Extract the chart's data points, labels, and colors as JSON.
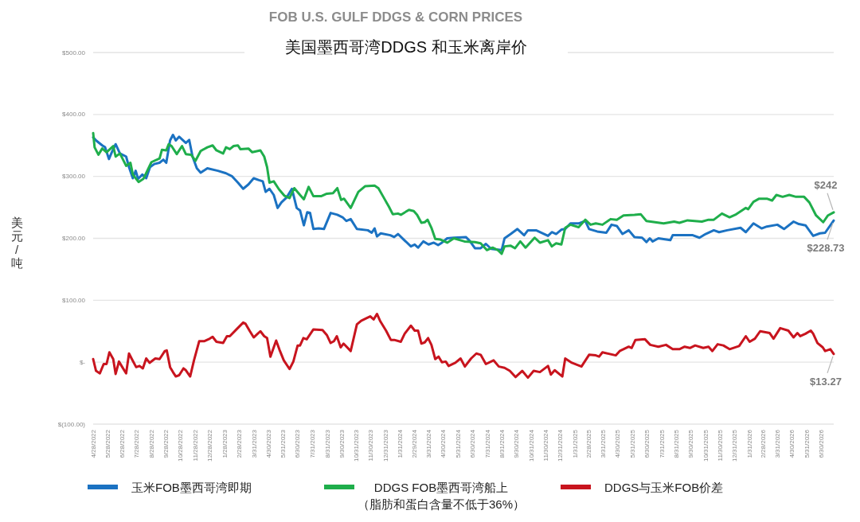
{
  "chart_data": {
    "type": "line",
    "title": "FOB U.S. GULF DDGS & CORN PRICES",
    "subtitle": "美国墨西哥湾DDGS 和玉米离岸价",
    "ylabel": "美元/吨",
    "xlim": [
      "2022-04-28",
      "2026-07-26"
    ],
    "ylim": [
      -100,
      500
    ],
    "yticks": [
      {
        "value": 500,
        "label": "$500.00"
      },
      {
        "value": 400,
        "label": "$400.00"
      },
      {
        "value": 300,
        "label": "$300.00"
      },
      {
        "value": 200,
        "label": "$200.00"
      },
      {
        "value": 100,
        "label": "$100.00"
      },
      {
        "value": 0,
        "label": "$-"
      },
      {
        "value": -100,
        "label": "$(100.00)"
      }
    ],
    "xticks": [
      {
        "value": "2022-04-28",
        "label": "4/28/2022"
      },
      {
        "value": "2022-05-28",
        "label": "5/28/2022"
      },
      {
        "value": "2022-06-28",
        "label": "6/28/2022"
      },
      {
        "value": "2022-07-28",
        "label": "7/28/2022"
      },
      {
        "value": "2022-08-28",
        "label": "8/28/2022"
      },
      {
        "value": "2022-09-28",
        "label": "9/28/2022"
      },
      {
        "value": "2022-10-28",
        "label": "10/28/2022"
      },
      {
        "value": "2022-11-28",
        "label": "11/28/2022"
      },
      {
        "value": "2022-12-28",
        "label": "12/28/2022"
      },
      {
        "value": "2023-01-28",
        "label": "1/28/2023"
      },
      {
        "value": "2023-02-28",
        "label": "2/28/2023"
      },
      {
        "value": "2023-03-31",
        "label": "3/31/2023"
      },
      {
        "value": "2023-04-30",
        "label": "4/30/2023"
      },
      {
        "value": "2023-05-31",
        "label": "5/31/2023"
      },
      {
        "value": "2023-06-30",
        "label": "6/30/2023"
      },
      {
        "value": "2023-07-31",
        "label": "7/31/2023"
      },
      {
        "value": "2023-08-31",
        "label": "8/31/2023"
      },
      {
        "value": "2023-09-30",
        "label": "9/30/2023"
      },
      {
        "value": "2023-10-31",
        "label": "10/31/2023"
      },
      {
        "value": "2023-11-30",
        "label": "11/30/2023"
      },
      {
        "value": "2023-12-31",
        "label": "12/31/2023"
      },
      {
        "value": "2024-01-31",
        "label": "1/31/2024"
      },
      {
        "value": "2024-02-29",
        "label": "2/29/2024"
      },
      {
        "value": "2024-03-31",
        "label": "3/31/2024"
      },
      {
        "value": "2024-04-30",
        "label": "4/30/2024"
      },
      {
        "value": "2024-05-31",
        "label": "5/31/2024"
      },
      {
        "value": "2024-06-30",
        "label": "6/30/2024"
      },
      {
        "value": "2024-07-31",
        "label": "7/31/2024"
      },
      {
        "value": "2024-08-31",
        "label": "8/31/2024"
      },
      {
        "value": "2024-09-30",
        "label": "9/30/2024"
      },
      {
        "value": "2024-10-31",
        "label": "10/31/2024"
      },
      {
        "value": "2024-11-30",
        "label": "11/30/2024"
      },
      {
        "value": "2024-12-31",
        "label": "12/31/2024"
      },
      {
        "value": "2025-01-31",
        "label": "1/31/2025"
      },
      {
        "value": "2025-02-28",
        "label": "2/28/2025"
      },
      {
        "value": "2025-03-31",
        "label": "3/31/2025"
      },
      {
        "value": "2025-04-30",
        "label": "4/30/2025"
      },
      {
        "value": "2025-05-31",
        "label": "5/31/2025"
      },
      {
        "value": "2025-06-30",
        "label": "6/30/2025"
      },
      {
        "value": "2025-07-31",
        "label": "7/31/2025"
      },
      {
        "value": "2025-08-31",
        "label": "8/31/2025"
      },
      {
        "value": "2025-09-30",
        "label": "9/30/2025"
      },
      {
        "value": "2025-10-31",
        "label": "10/31/2025"
      },
      {
        "value": "2025-11-30",
        "label": "11/30/2025"
      },
      {
        "value": "2025-12-31",
        "label": "12/31/2025"
      },
      {
        "value": "2026-01-31",
        "label": "1/31/2026"
      },
      {
        "value": "2026-02-28",
        "label": "2/28/2026"
      },
      {
        "value": "2026-03-31",
        "label": "3/31/2026"
      },
      {
        "value": "2026-04-30",
        "label": "4/30/2026"
      },
      {
        "value": "2026-05-31",
        "label": "5/31/2026"
      },
      {
        "value": "2026-06-30",
        "label": "6/30/2026"
      }
    ],
    "series": [
      {
        "name": "玉米FOB墨西哥湾即期",
        "color": "#1b72c2",
        "x": [
          "2022-04-28",
          "2022-05-04",
          "2022-05-17",
          "2022-05-23",
          "2022-05-31",
          "2022-06-06",
          "2022-06-14",
          "2022-06-23",
          "2022-07-06",
          "2022-07-12",
          "2022-07-20",
          "2022-07-26",
          "2022-07-31",
          "2022-08-09",
          "2022-08-17",
          "2022-08-25",
          "2022-09-03",
          "2022-09-14",
          "2022-09-22",
          "2022-09-28",
          "2022-10-06",
          "2022-10-12",
          "2022-10-18",
          "2022-10-25",
          "2022-11-08",
          "2022-11-15",
          "2022-11-22",
          "2022-12-01",
          "2022-12-09",
          "2022-12-23",
          "2023-01-14",
          "2023-01-31",
          "2023-02-13",
          "2023-02-25",
          "2023-03-08",
          "2023-03-19",
          "2023-03-30",
          "2023-04-10",
          "2023-04-18",
          "2023-04-24",
          "2023-05-02",
          "2023-05-11",
          "2023-05-19",
          "2023-05-27",
          "2023-06-07",
          "2023-06-18",
          "2023-06-28",
          "2023-07-05",
          "2023-07-13",
          "2023-07-20",
          "2023-07-26",
          "2023-08-02",
          "2023-08-13",
          "2023-08-24",
          "2023-09-07",
          "2023-09-21",
          "2023-10-02",
          "2023-10-10",
          "2023-10-19",
          "2023-11-01",
          "2023-11-24",
          "2023-12-02",
          "2023-12-08",
          "2023-12-13",
          "2023-12-21",
          "2024-01-10",
          "2024-01-18",
          "2024-01-26",
          "2024-02-07",
          "2024-02-22",
          "2024-03-01",
          "2024-03-08",
          "2024-03-19",
          "2024-03-30",
          "2024-04-10",
          "2024-04-19",
          "2024-04-27",
          "2024-05-08",
          "2024-05-22",
          "2024-06-16",
          "2024-06-24",
          "2024-07-05",
          "2024-07-17",
          "2024-07-28",
          "2024-08-08",
          "2024-08-30",
          "2024-09-05",
          "2024-09-18",
          "2024-10-02",
          "2024-10-16",
          "2024-10-24",
          "2024-11-10",
          "2024-12-05",
          "2024-12-13",
          "2024-12-22",
          "2025-01-02",
          "2025-01-10",
          "2025-01-21",
          "2025-02-07",
          "2025-02-21",
          "2025-03-01",
          "2025-03-18",
          "2025-04-06",
          "2025-04-17",
          "2025-04-28",
          "2025-05-10",
          "2025-05-23",
          "2025-06-04",
          "2025-06-20",
          "2025-06-29",
          "2025-07-06",
          "2025-07-12",
          "2025-07-24",
          "2025-08-18",
          "2025-08-23",
          "2025-10-04",
          "2025-10-18",
          "2025-10-31",
          "2025-11-17",
          "2025-11-28",
          "2025-12-15",
          "2026-01-12",
          "2026-01-23",
          "2026-02-08",
          "2026-02-25",
          "2026-03-08",
          "2026-03-30",
          "2026-04-13",
          "2026-05-03",
          "2026-05-14",
          "2026-05-28",
          "2026-06-13",
          "2026-06-27",
          "2026-07-08",
          "2026-07-26"
        ],
        "values": [
          363,
          358,
          350,
          347,
          328,
          339,
          352,
          337,
          332,
          315,
          297,
          309,
          296,
          303,
          297,
          315,
          320,
          322,
          327,
          322,
          358,
          367,
          358,
          364,
          354,
          359,
          332,
          313,
          306,
          313,
          309,
          305,
          300,
          290,
          280,
          287,
          297,
          294,
          292,
          275,
          280,
          270,
          249,
          258,
          266,
          280,
          249,
          245,
          221,
          242,
          241,
          215,
          216,
          215,
          241,
          238,
          234,
          228,
          231,
          215,
          213,
          209,
          216,
          203,
          208,
          205,
          202,
          207,
          198,
          187,
          190,
          185,
          195,
          190,
          193,
          189,
          193,
          200,
          201,
          202,
          196,
          184,
          184,
          191,
          183,
          181,
          200,
          207,
          215,
          205,
          213,
          213,
          204,
          210,
          207,
          214,
          215,
          224,
          224,
          228,
          215,
          211,
          209,
          222,
          220,
          207,
          213,
          202,
          201,
          194,
          200,
          195,
          200,
          197,
          205,
          205,
          201,
          207,
          213,
          210,
          213,
          217,
          210,
          224,
          216,
          219,
          222,
          215,
          227,
          223,
          221,
          204,
          208,
          209,
          228.73
        ]
      },
      {
        "name": "DDGS FOB墨西哥湾船上（脂肪和蛋白含量不低于36%）",
        "color": "#1fae4b",
        "x": [
          "2022-04-28",
          "2022-05-01",
          "2022-05-09",
          "2022-05-17",
          "2022-05-26",
          "2022-06-09",
          "2022-06-14",
          "2022-06-23",
          "2022-07-06",
          "2022-07-15",
          "2022-07-20",
          "2022-08-01",
          "2022-08-11",
          "2022-08-28",
          "2022-09-14",
          "2022-09-19",
          "2022-09-28",
          "2022-10-03",
          "2022-10-09",
          "2022-10-20",
          "2022-10-31",
          "2022-11-08",
          "2022-11-19",
          "2022-11-28",
          "2022-12-09",
          "2022-12-23",
          "2023-01-03",
          "2023-01-11",
          "2023-01-25",
          "2023-01-31",
          "2023-02-08",
          "2023-02-16",
          "2023-02-25",
          "2023-03-02",
          "2023-03-19",
          "2023-03-27",
          "2023-04-13",
          "2023-04-21",
          "2023-04-27",
          "2023-05-02",
          "2023-05-11",
          "2023-05-22",
          "2023-06-02",
          "2023-06-13",
          "2023-06-23",
          "2023-07-05",
          "2023-07-13",
          "2023-07-23",
          "2023-08-02",
          "2023-08-18",
          "2023-08-30",
          "2023-09-12",
          "2023-09-21",
          "2023-09-29",
          "2023-10-05",
          "2023-10-19",
          "2023-11-04",
          "2023-11-18",
          "2023-12-08",
          "2023-12-16",
          "2023-12-27",
          "2024-01-07",
          "2024-01-15",
          "2024-01-26",
          "2024-02-01",
          "2024-02-18",
          "2024-02-28",
          "2024-03-06",
          "2024-03-15",
          "2024-03-22",
          "2024-03-28",
          "2024-04-05",
          "2024-04-13",
          "2024-04-24",
          "2024-05-08",
          "2024-05-22",
          "2024-06-13",
          "2024-07-05",
          "2024-07-17",
          "2024-07-30",
          "2024-08-11",
          "2024-08-22",
          "2024-08-30",
          "2024-09-05",
          "2024-09-18",
          "2024-09-27",
          "2024-10-08",
          "2024-10-19",
          "2024-11-07",
          "2024-11-18",
          "2024-12-05",
          "2024-12-13",
          "2024-12-22",
          "2025-01-02",
          "2025-01-10",
          "2025-01-21",
          "2025-02-07",
          "2025-02-21",
          "2025-03-04",
          "2025-03-15",
          "2025-03-29",
          "2025-04-15",
          "2025-04-28",
          "2025-05-12",
          "2025-06-04",
          "2025-06-17",
          "2025-06-29",
          "2025-08-04",
          "2025-08-26",
          "2025-09-06",
          "2025-09-23",
          "2025-10-23",
          "2025-11-06",
          "2025-11-17",
          "2025-12-04",
          "2025-12-20",
          "2026-01-01",
          "2026-01-23",
          "2026-01-28",
          "2026-02-08",
          "2026-02-20",
          "2026-03-08",
          "2026-03-19",
          "2026-03-28",
          "2026-04-10",
          "2026-04-24",
          "2026-05-08",
          "2026-05-25",
          "2026-06-05",
          "2026-06-19",
          "2026-07-04",
          "2026-07-14",
          "2026-07-26"
        ],
        "values": [
          370,
          347,
          335,
          345,
          339,
          349,
          332,
          337,
          317,
          322,
          303,
          291,
          296,
          323,
          329,
          343,
          342,
          352,
          349,
          336,
          349,
          336,
          335,
          325,
          341,
          347,
          350,
          342,
          337,
          347,
          344,
          349,
          350,
          344,
          345,
          339,
          342,
          332,
          315,
          290,
          292,
          279,
          269,
          265,
          281,
          270,
          263,
          283,
          268,
          268,
          272,
          273,
          281,
          262,
          264,
          249,
          275,
          284,
          285,
          281,
          266,
          251,
          239,
          240,
          238,
          246,
          244,
          238,
          225,
          226,
          230,
          217,
          199,
          198,
          193,
          200,
          195,
          194,
          192,
          181,
          185,
          181,
          175,
          187,
          188,
          184,
          195,
          185,
          201,
          193,
          197,
          187,
          192,
          190,
          217,
          222,
          218,
          230,
          222,
          224,
          222,
          231,
          230,
          237,
          238,
          239,
          228,
          224,
          227,
          225,
          229,
          227,
          230,
          230,
          240,
          234,
          238,
          249,
          247,
          259,
          264,
          264,
          261,
          270,
          267,
          270,
          267,
          267,
          258,
          237,
          226,
          237,
          242
        ]
      },
      {
        "name": "DDGS与玉米FOB价差",
        "color": "#c8141e",
        "x": [
          "2022-04-28",
          "2022-05-04",
          "2022-05-12",
          "2022-05-20",
          "2022-05-26",
          "2022-06-01",
          "2022-06-09",
          "2022-06-14",
          "2022-06-21",
          "2022-06-28",
          "2022-07-06",
          "2022-07-12",
          "2022-07-18",
          "2022-07-27",
          "2022-08-03",
          "2022-08-10",
          "2022-08-17",
          "2022-08-24",
          "2022-09-05",
          "2022-09-14",
          "2022-09-25",
          "2022-09-29",
          "2022-10-06",
          "2022-10-12",
          "2022-10-18",
          "2022-10-25",
          "2022-11-03",
          "2022-11-08",
          "2022-11-17",
          "2022-11-25",
          "2022-12-06",
          "2022-12-17",
          "2022-12-28",
          "2023-01-03",
          "2023-01-11",
          "2023-01-25",
          "2023-02-02",
          "2023-02-08",
          "2023-02-22",
          "2023-03-08",
          "2023-03-13",
          "2023-03-22",
          "2023-03-30",
          "2023-04-06",
          "2023-04-13",
          "2023-04-21",
          "2023-04-27",
          "2023-05-04",
          "2023-05-16",
          "2023-05-23",
          "2023-06-01",
          "2023-06-13",
          "2023-06-21",
          "2023-06-30",
          "2023-07-05",
          "2023-07-12",
          "2023-07-19",
          "2023-08-02",
          "2023-08-21",
          "2023-08-30",
          "2023-09-07",
          "2023-09-14",
          "2023-09-20",
          "2023-09-28",
          "2023-10-04",
          "2023-10-19",
          "2023-11-01",
          "2023-11-10",
          "2023-11-21",
          "2023-11-29",
          "2023-12-06",
          "2023-12-13",
          "2023-12-20",
          "2024-01-01",
          "2024-01-11",
          "2024-01-18",
          "2024-02-01",
          "2024-02-09",
          "2024-02-22",
          "2024-03-01",
          "2024-03-08",
          "2024-03-15",
          "2024-03-22",
          "2024-03-29",
          "2024-04-05",
          "2024-04-13",
          "2024-04-20",
          "2024-04-27",
          "2024-05-05",
          "2024-05-11",
          "2024-05-25",
          "2024-06-05",
          "2024-06-14",
          "2024-06-27",
          "2024-07-08",
          "2024-07-17",
          "2024-07-28",
          "2024-08-13",
          "2024-08-24",
          "2024-09-05",
          "2024-09-16",
          "2024-09-28",
          "2024-10-12",
          "2024-10-24",
          "2024-11-05",
          "2024-11-18",
          "2024-12-05",
          "2024-12-11",
          "2024-12-19",
          "2025-01-04",
          "2025-01-10",
          "2025-01-24",
          "2025-02-13",
          "2025-03-01",
          "2025-03-15",
          "2025-03-22",
          "2025-03-29",
          "2025-04-26",
          "2025-05-04",
          "2025-05-23",
          "2025-05-29",
          "2025-06-06",
          "2025-06-26",
          "2025-07-07",
          "2025-07-24",
          "2025-08-09",
          "2025-08-23",
          "2025-09-06",
          "2025-09-17",
          "2025-09-28",
          "2025-10-09",
          "2025-10-26",
          "2025-11-06",
          "2025-11-14",
          "2025-11-25",
          "2025-12-07",
          "2025-12-20",
          "2026-01-09",
          "2026-01-23",
          "2026-01-31",
          "2026-02-11",
          "2026-02-22",
          "2026-03-14",
          "2026-03-22",
          "2026-04-05",
          "2026-04-22",
          "2026-05-03",
          "2026-05-11",
          "2026-05-17",
          "2026-05-28",
          "2026-06-08",
          "2026-06-13",
          "2026-06-22",
          "2026-07-03",
          "2026-07-08",
          "2026-07-19",
          "2026-07-26"
        ],
        "values": [
          5,
          -14,
          -18,
          -3,
          -3,
          16,
          5,
          -19,
          1,
          -8,
          -18,
          14,
          5,
          -8,
          -6,
          -10,
          6,
          -1,
          6,
          5,
          18,
          19,
          -8,
          -16,
          -23,
          -21,
          -10,
          -13,
          -23,
          3,
          34,
          34,
          38,
          41,
          33,
          31,
          42,
          42,
          53,
          64,
          62,
          50,
          40,
          45,
          50,
          42,
          39,
          9,
          35,
          20,
          3,
          -11,
          1,
          27,
          27,
          39,
          37,
          53,
          52,
          44,
          31,
          34,
          42,
          24,
          30,
          18,
          61,
          67,
          71,
          74,
          69,
          78,
          66,
          51,
          36,
          36,
          33,
          46,
          59,
          51,
          51,
          30,
          32,
          39,
          28,
          5,
          9,
          0,
          1,
          -6,
          -1,
          6,
          -7,
          6,
          14,
          12,
          -3,
          3,
          -7,
          -9,
          -14,
          -24,
          -14,
          -25,
          -14,
          -16,
          -6,
          -20,
          -13,
          -23,
          6,
          -1,
          -7,
          12,
          11,
          9,
          16,
          11,
          18,
          25,
          23,
          36,
          37,
          28,
          25,
          28,
          21,
          21,
          25,
          23,
          27,
          23,
          25,
          18,
          29,
          27,
          21,
          26,
          42,
          33,
          38,
          50,
          47,
          38,
          55,
          51,
          40,
          47,
          42,
          46,
          51,
          46,
          31,
          24,
          18,
          21,
          13.27
        ]
      }
    ],
    "annotations": [
      {
        "text": "$242",
        "x": "2026-07-26",
        "y": 242
      },
      {
        "text": "$228.73",
        "x": "2026-07-26",
        "y": 228.73
      },
      {
        "text": "$13.27",
        "x": "2026-07-26",
        "y": 13.27
      }
    ],
    "grid": "y",
    "legend": "bottom",
    "line_style": "solid"
  }
}
